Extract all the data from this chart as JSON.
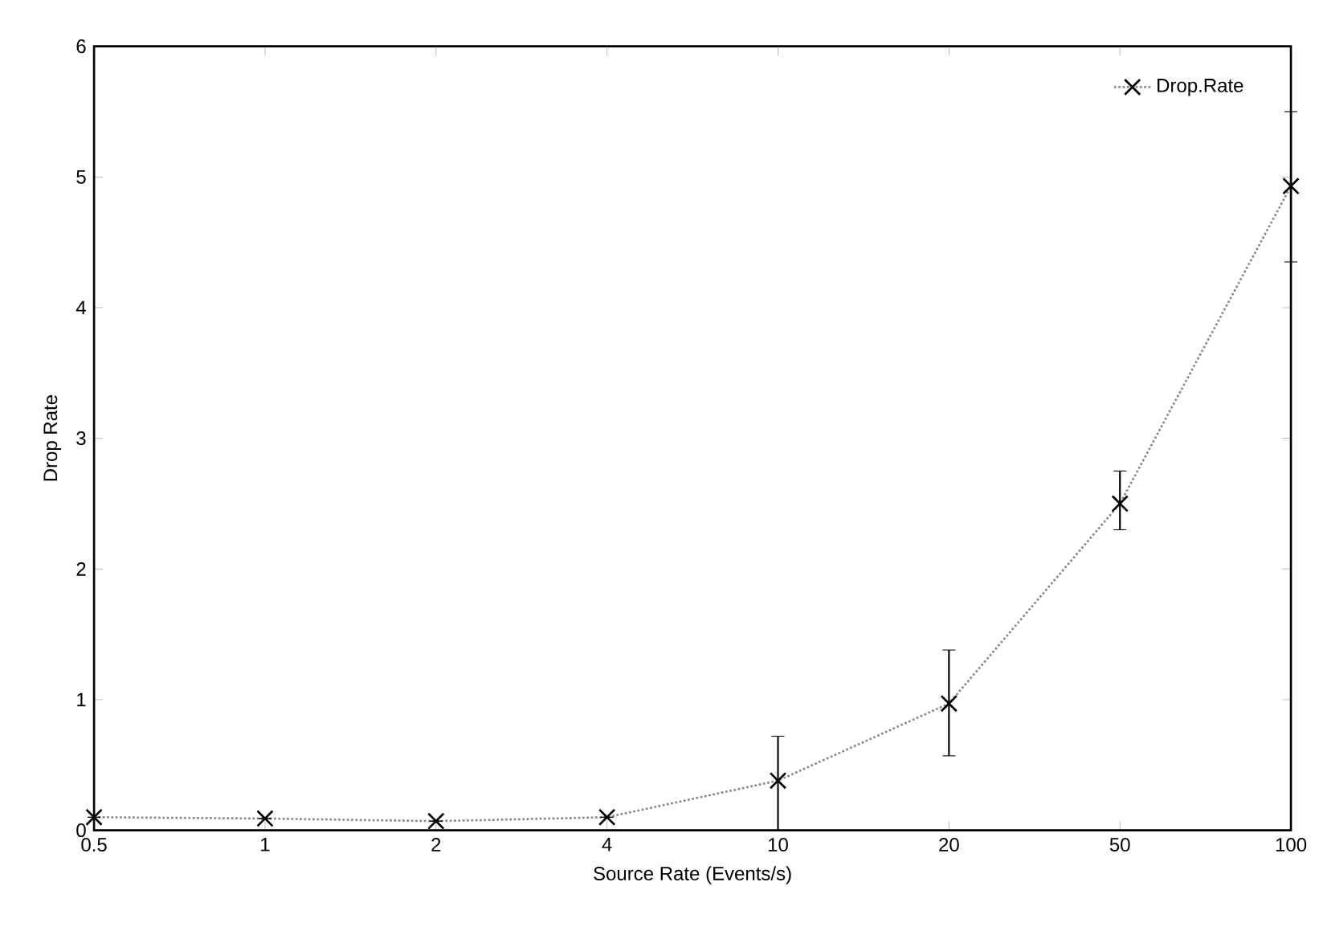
{
  "chart_data": {
    "type": "line",
    "xlabel": "Source Rate (Events/s)",
    "ylabel": "Drop Rate",
    "categories": [
      "0.5",
      "1",
      "2",
      "4",
      "10",
      "20",
      "50",
      "100"
    ],
    "series": [
      {
        "name": "Drop.Rate",
        "color": "#888888",
        "values": [
          0.1,
          0.09,
          0.07,
          0.1,
          0.38,
          0.97,
          2.5,
          4.93
        ],
        "errors": [
          null,
          null,
          null,
          null,
          [
            0.0,
            0.72
          ],
          [
            0.57,
            1.38
          ],
          [
            2.3,
            2.75
          ],
          [
            4.35,
            5.5
          ]
        ]
      }
    ],
    "ylim": [
      0,
      6
    ],
    "yticks": [
      0,
      1,
      2,
      3,
      4,
      5,
      6
    ],
    "grid": false,
    "legend": "top right",
    "marker": "cross",
    "line_style": "dotted"
  }
}
